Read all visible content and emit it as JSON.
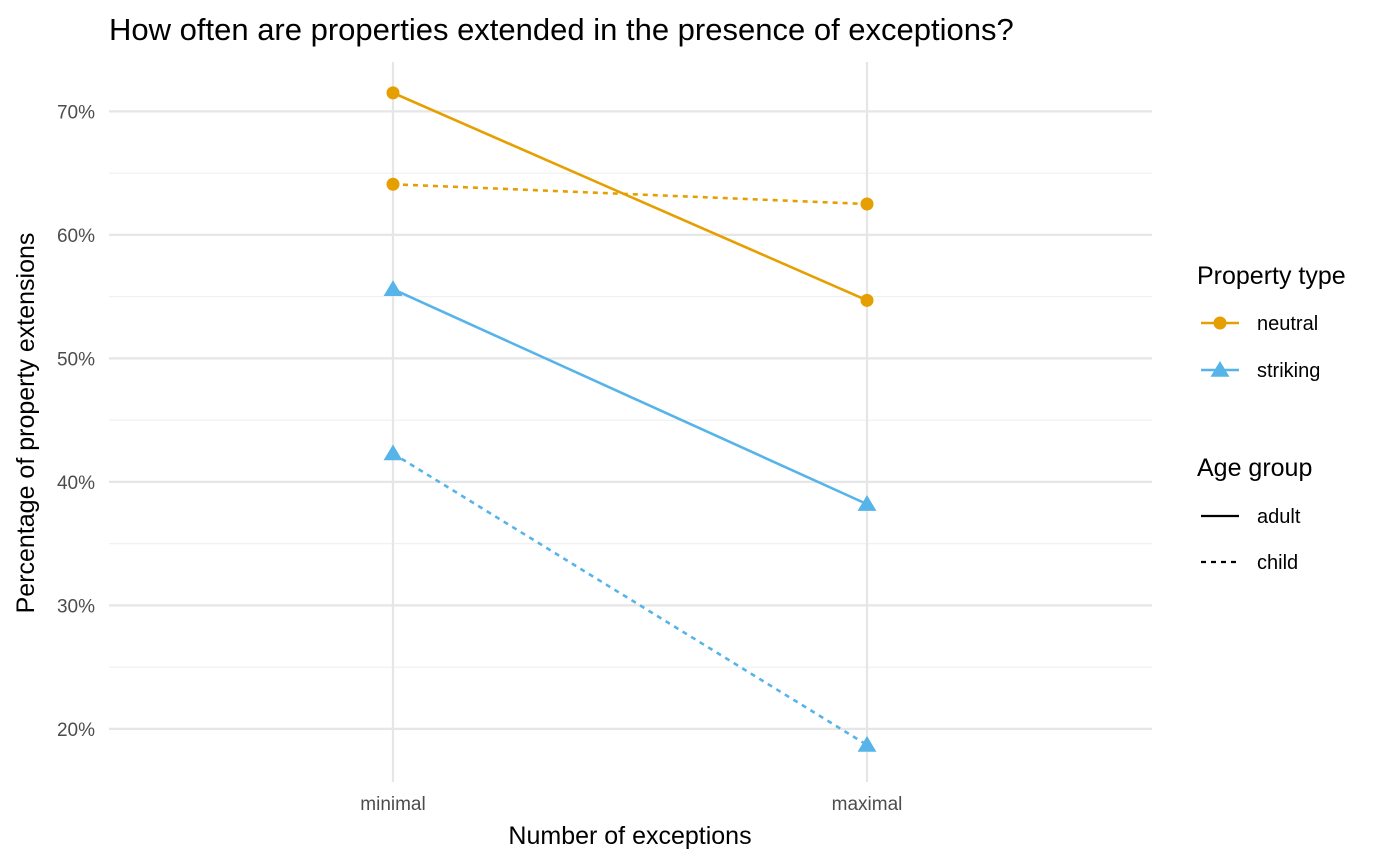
{
  "chart_data": {
    "type": "line",
    "title": "How often are properties extended in the presence of exceptions?",
    "xlabel": "Number of exceptions",
    "ylabel": "Percentage of property extensions",
    "categories": [
      "minimal",
      "maximal"
    ],
    "ylim": [
      15.7,
      74
    ],
    "yticks": [
      20,
      30,
      40,
      50,
      60,
      70
    ],
    "ytick_labels": [
      "20%",
      "30%",
      "40%",
      "50%",
      "60%",
      "70%"
    ],
    "grid": true,
    "legend_position": "right",
    "series": [
      {
        "property_type": "neutral",
        "age_group": "adult",
        "color": "#E69F00",
        "marker": "circle",
        "linetype": "solid",
        "values": [
          71.5,
          54.7
        ]
      },
      {
        "property_type": "neutral",
        "age_group": "child",
        "color": "#E69F00",
        "marker": "circle",
        "linetype": "dotted",
        "values": [
          64.1,
          62.5
        ]
      },
      {
        "property_type": "striking",
        "age_group": "adult",
        "color": "#56B4E9",
        "marker": "triangle",
        "linetype": "solid",
        "values": [
          55.6,
          38.2
        ]
      },
      {
        "property_type": "striking",
        "age_group": "child",
        "color": "#56B4E9",
        "marker": "triangle",
        "linetype": "dotted",
        "values": [
          42.3,
          18.7
        ]
      }
    ],
    "legends": [
      {
        "title": "Property type",
        "entries": [
          {
            "label": "neutral",
            "color": "#E69F00",
            "marker": "circle"
          },
          {
            "label": "striking",
            "color": "#56B4E9",
            "marker": "triangle"
          }
        ]
      },
      {
        "title": "Age group",
        "entries": [
          {
            "label": "adult",
            "linetype": "solid"
          },
          {
            "label": "child",
            "linetype": "dotted"
          }
        ]
      }
    ]
  }
}
